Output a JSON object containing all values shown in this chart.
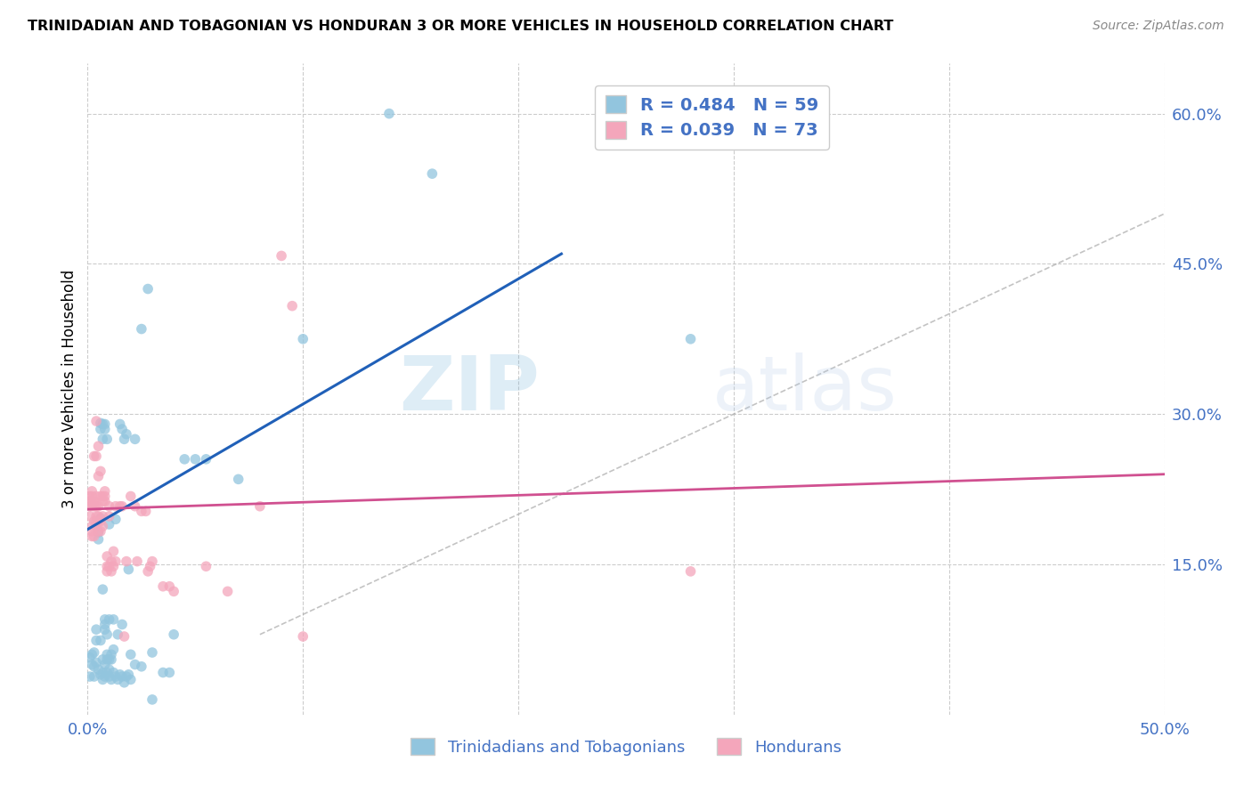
{
  "title": "TRINIDADIAN AND TOBAGONIAN VS HONDURAN 3 OR MORE VEHICLES IN HOUSEHOLD CORRELATION CHART",
  "source": "Source: ZipAtlas.com",
  "ylabel": "3 or more Vehicles in Household",
  "xmin": 0.0,
  "xmax": 0.5,
  "ymin": 0.0,
  "ymax": 0.65,
  "x_ticks": [
    0.0,
    0.1,
    0.2,
    0.3,
    0.4,
    0.5
  ],
  "x_tick_labels": [
    "0.0%",
    "",
    "",
    "",
    "",
    "50.0%"
  ],
  "y_ticks_right": [
    0.15,
    0.3,
    0.45,
    0.6
  ],
  "y_tick_labels_right": [
    "15.0%",
    "30.0%",
    "45.0%",
    "60.0%"
  ],
  "watermark_zip": "ZIP",
  "watermark_atlas": "atlas",
  "color_blue": "#92c5de",
  "color_pink": "#f4a6bb",
  "color_blue_text": "#4472c4",
  "color_line_blue": "#2060b8",
  "color_line_pink": "#d05090",
  "color_diag": "#aaaaaa",
  "scatter_blue": [
    [
      0.001,
      0.057
    ],
    [
      0.002,
      0.06
    ],
    [
      0.003,
      0.048
    ],
    [
      0.003,
      0.038
    ],
    [
      0.004,
      0.074
    ],
    [
      0.004,
      0.085
    ],
    [
      0.005,
      0.175
    ],
    [
      0.005,
      0.182
    ],
    [
      0.006,
      0.074
    ],
    [
      0.006,
      0.196
    ],
    [
      0.006,
      0.285
    ],
    [
      0.006,
      0.291
    ],
    [
      0.007,
      0.055
    ],
    [
      0.007,
      0.125
    ],
    [
      0.007,
      0.275
    ],
    [
      0.007,
      0.29
    ],
    [
      0.008,
      0.05
    ],
    [
      0.008,
      0.085
    ],
    [
      0.008,
      0.09
    ],
    [
      0.008,
      0.095
    ],
    [
      0.008,
      0.285
    ],
    [
      0.008,
      0.29
    ],
    [
      0.009,
      0.055
    ],
    [
      0.009,
      0.06
    ],
    [
      0.009,
      0.08
    ],
    [
      0.009,
      0.275
    ],
    [
      0.01,
      0.045
    ],
    [
      0.01,
      0.055
    ],
    [
      0.01,
      0.095
    ],
    [
      0.01,
      0.19
    ],
    [
      0.011,
      0.055
    ],
    [
      0.011,
      0.06
    ],
    [
      0.012,
      0.065
    ],
    [
      0.012,
      0.095
    ],
    [
      0.013,
      0.195
    ],
    [
      0.014,
      0.08
    ],
    [
      0.015,
      0.29
    ],
    [
      0.016,
      0.09
    ],
    [
      0.016,
      0.285
    ],
    [
      0.017,
      0.275
    ],
    [
      0.018,
      0.28
    ],
    [
      0.019,
      0.145
    ],
    [
      0.02,
      0.035
    ],
    [
      0.022,
      0.275
    ],
    [
      0.025,
      0.385
    ],
    [
      0.028,
      0.425
    ],
    [
      0.03,
      0.015
    ],
    [
      0.035,
      0.042
    ],
    [
      0.038,
      0.042
    ],
    [
      0.04,
      0.08
    ],
    [
      0.045,
      0.255
    ],
    [
      0.05,
      0.255
    ],
    [
      0.055,
      0.255
    ],
    [
      0.07,
      0.235
    ],
    [
      0.1,
      0.375
    ],
    [
      0.14,
      0.6
    ],
    [
      0.16,
      0.54
    ],
    [
      0.28,
      0.375
    ],
    [
      0.001,
      0.038
    ],
    [
      0.002,
      0.05
    ],
    [
      0.003,
      0.062
    ],
    [
      0.004,
      0.052
    ],
    [
      0.005,
      0.045
    ],
    [
      0.006,
      0.04
    ],
    [
      0.007,
      0.035
    ],
    [
      0.007,
      0.042
    ],
    [
      0.008,
      0.038
    ],
    [
      0.009,
      0.042
    ],
    [
      0.01,
      0.038
    ],
    [
      0.011,
      0.035
    ],
    [
      0.012,
      0.042
    ],
    [
      0.013,
      0.038
    ],
    [
      0.014,
      0.035
    ],
    [
      0.015,
      0.04
    ],
    [
      0.016,
      0.038
    ],
    [
      0.017,
      0.032
    ],
    [
      0.018,
      0.038
    ],
    [
      0.019,
      0.04
    ],
    [
      0.02,
      0.06
    ],
    [
      0.022,
      0.05
    ],
    [
      0.025,
      0.048
    ],
    [
      0.03,
      0.062
    ]
  ],
  "scatter_pink": [
    [
      0.001,
      0.198
    ],
    [
      0.001,
      0.208
    ],
    [
      0.001,
      0.213
    ],
    [
      0.001,
      0.218
    ],
    [
      0.002,
      0.178
    ],
    [
      0.002,
      0.183
    ],
    [
      0.002,
      0.188
    ],
    [
      0.002,
      0.208
    ],
    [
      0.002,
      0.213
    ],
    [
      0.002,
      0.218
    ],
    [
      0.002,
      0.223
    ],
    [
      0.003,
      0.178
    ],
    [
      0.003,
      0.193
    ],
    [
      0.003,
      0.208
    ],
    [
      0.003,
      0.213
    ],
    [
      0.003,
      0.258
    ],
    [
      0.004,
      0.188
    ],
    [
      0.004,
      0.193
    ],
    [
      0.004,
      0.198
    ],
    [
      0.004,
      0.208
    ],
    [
      0.004,
      0.218
    ],
    [
      0.004,
      0.258
    ],
    [
      0.004,
      0.293
    ],
    [
      0.005,
      0.183
    ],
    [
      0.005,
      0.193
    ],
    [
      0.005,
      0.198
    ],
    [
      0.005,
      0.208
    ],
    [
      0.005,
      0.238
    ],
    [
      0.005,
      0.268
    ],
    [
      0.006,
      0.183
    ],
    [
      0.006,
      0.193
    ],
    [
      0.006,
      0.218
    ],
    [
      0.006,
      0.243
    ],
    [
      0.007,
      0.188
    ],
    [
      0.007,
      0.198
    ],
    [
      0.007,
      0.213
    ],
    [
      0.007,
      0.218
    ],
    [
      0.008,
      0.213
    ],
    [
      0.008,
      0.218
    ],
    [
      0.008,
      0.223
    ],
    [
      0.009,
      0.143
    ],
    [
      0.009,
      0.148
    ],
    [
      0.009,
      0.158
    ],
    [
      0.01,
      0.148
    ],
    [
      0.01,
      0.198
    ],
    [
      0.01,
      0.208
    ],
    [
      0.011,
      0.143
    ],
    [
      0.011,
      0.153
    ],
    [
      0.012,
      0.148
    ],
    [
      0.012,
      0.163
    ],
    [
      0.013,
      0.153
    ],
    [
      0.013,
      0.208
    ],
    [
      0.015,
      0.208
    ],
    [
      0.016,
      0.208
    ],
    [
      0.017,
      0.078
    ],
    [
      0.018,
      0.153
    ],
    [
      0.02,
      0.218
    ],
    [
      0.022,
      0.208
    ],
    [
      0.023,
      0.153
    ],
    [
      0.025,
      0.203
    ],
    [
      0.027,
      0.203
    ],
    [
      0.028,
      0.143
    ],
    [
      0.029,
      0.148
    ],
    [
      0.03,
      0.153
    ],
    [
      0.035,
      0.128
    ],
    [
      0.038,
      0.128
    ],
    [
      0.04,
      0.123
    ],
    [
      0.055,
      0.148
    ],
    [
      0.065,
      0.123
    ],
    [
      0.08,
      0.208
    ],
    [
      0.09,
      0.458
    ],
    [
      0.095,
      0.408
    ],
    [
      0.1,
      0.078
    ],
    [
      0.28,
      0.143
    ]
  ],
  "blue_line_x": [
    0.0,
    0.22
  ],
  "blue_line_y": [
    0.185,
    0.46
  ],
  "pink_line_x": [
    0.0,
    0.5
  ],
  "pink_line_y": [
    0.205,
    0.24
  ],
  "diag_line_x": [
    0.08,
    0.5
  ],
  "diag_line_y": [
    0.08,
    0.5
  ],
  "legend_items": [
    "Trinidadians and Tobagonians",
    "Hondurans"
  ]
}
